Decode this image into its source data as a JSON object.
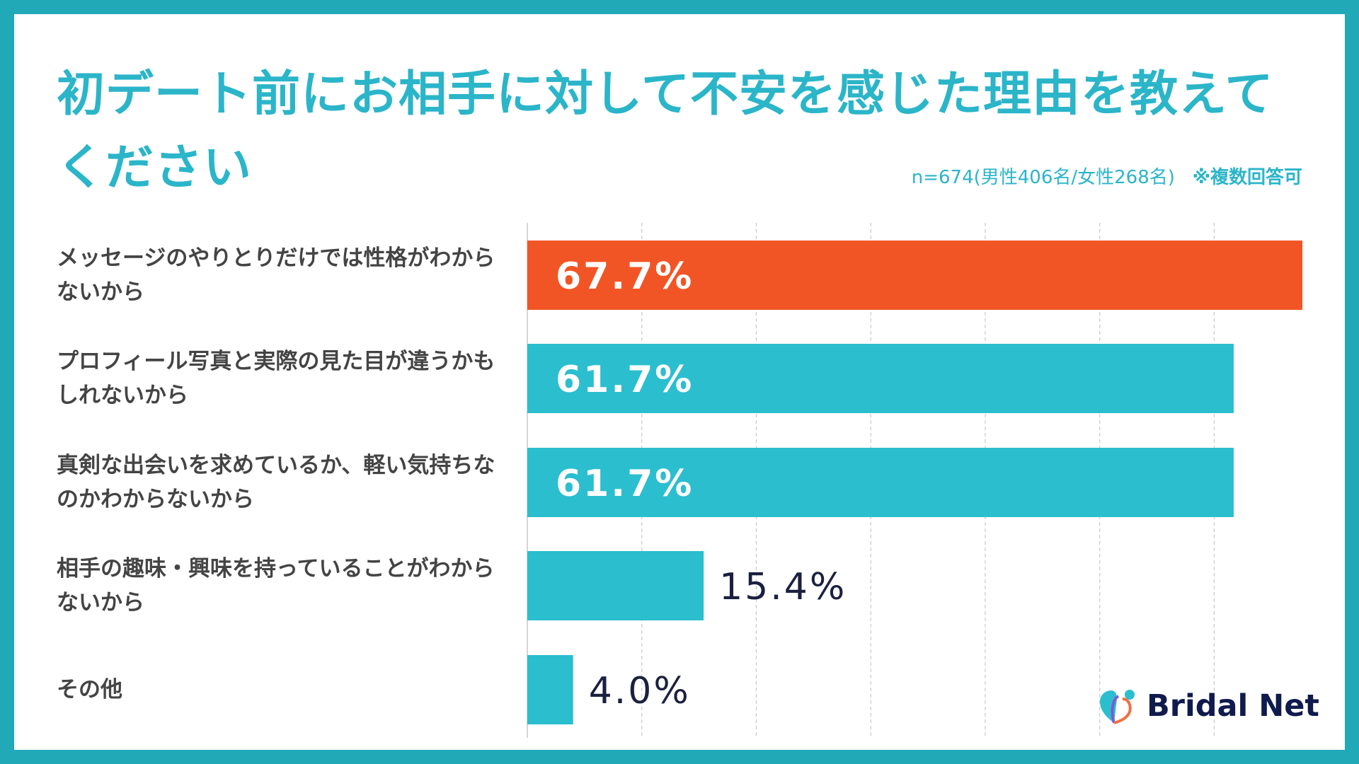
{
  "title": "初デート前にお相手に対して不安を感じた理由を教えてください",
  "subtitle": "n=674(男性406名/女性268名)",
  "note": "※複数回答可",
  "brand": "Bridal Net",
  "colors": {
    "border": "#22a9b8",
    "bar": "#2bbecf",
    "highlight": "#f25525",
    "label_dark": "#1b2040"
  },
  "chart_data": {
    "type": "bar",
    "orientation": "horizontal",
    "categories": [
      "メッセージのやりとりだけでは性格がわからないから",
      "プロフィール写真と実際の見た目が違うかもしれないから",
      "真剣な出会いを求めているか、軽い気持ちなのかわからないから",
      "相手の趣味・興味を持っていることがわからないから",
      "その他"
    ],
    "values": [
      67.7,
      61.7,
      61.7,
      15.4,
      4.0
    ],
    "labels": [
      "67.7%",
      "61.7%",
      "61.7%",
      "15.4%",
      "4.0%"
    ],
    "unit": "%",
    "xlim": [
      0,
      67.7
    ],
    "grid": true,
    "grid_step": 10,
    "highlight_index": 0
  }
}
